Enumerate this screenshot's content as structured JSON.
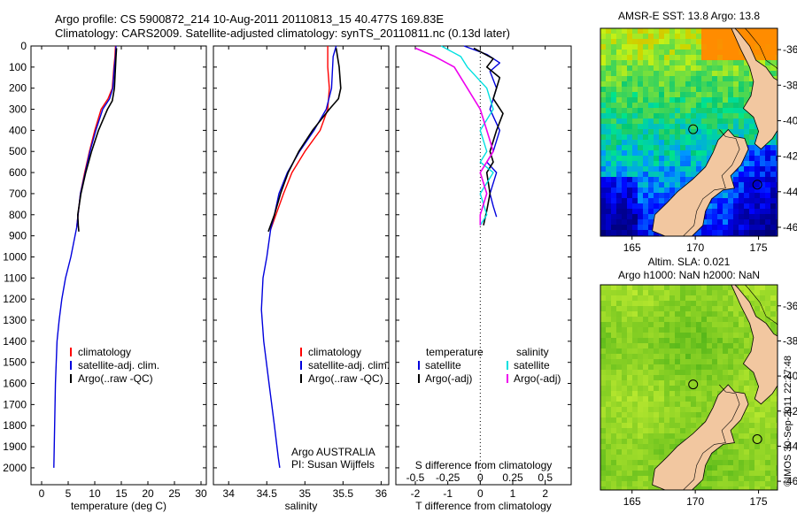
{
  "header": {
    "line1": "Argo profile: CS 5900872_214 10-Aug-2011 20110813_15 40.477S 169.83E",
    "line2": "Climatology: CARS2009. Satellite-adjusted climatology: synTS_20110811.nc (0.13d later)"
  },
  "colors": {
    "climatology": "#ff0000",
    "satellite": "#0000dd",
    "argo": "#000000",
    "salinity_satellite": "#00e0e0",
    "salinity_argo": "#ee00ee",
    "land": "#f2c7a0"
  },
  "chart_data": [
    {
      "type": "line",
      "id": "temperature",
      "xlabel": "temperature (deg C)",
      "ylabel": "",
      "xlim": [
        -2,
        31
      ],
      "ylim": [
        2080,
        0
      ],
      "xticks": [
        "0",
        "5",
        "10",
        "15",
        "20",
        "25",
        "30"
      ],
      "yticks": [
        "0",
        "100",
        "200",
        "300",
        "400",
        "500",
        "600",
        "700",
        "800",
        "900",
        "1000",
        "1100",
        "1200",
        "1300",
        "1400",
        "1500",
        "1600",
        "1700",
        "1800",
        "1900",
        "2000"
      ],
      "legend": [
        "climatology",
        "satellite-adj. clim.",
        "Argo(..raw -QC)"
      ],
      "series": [
        {
          "name": "climatology",
          "color": "#ff0000",
          "x": [
            13.9,
            13.8,
            13.6,
            13.3,
            12.5,
            11.2,
            10.0,
            9.0,
            8.1,
            7.3,
            6.6
          ],
          "y": [
            0,
            50,
            100,
            200,
            250,
            300,
            400,
            500,
            600,
            700,
            860
          ]
        },
        {
          "name": "satellite-adj. clim.",
          "color": "#0000dd",
          "x": [
            14.0,
            13.9,
            13.7,
            13.4,
            12.8,
            11.5,
            10.2,
            9.1,
            8.2,
            7.3,
            6.6,
            5.5,
            4.5,
            3.8,
            3.3,
            2.9,
            2.6,
            2.3
          ],
          "y": [
            0,
            50,
            100,
            200,
            250,
            300,
            400,
            500,
            600,
            700,
            860,
            1000,
            1100,
            1200,
            1300,
            1400,
            1600,
            2000
          ]
        },
        {
          "name": "Argo(..raw -QC)",
          "color": "#000000",
          "x": [
            14.1,
            14.0,
            13.9,
            13.7,
            13.3,
            12.4,
            10.7,
            9.4,
            8.3,
            7.4,
            6.8,
            6.9,
            7.0
          ],
          "y": [
            10,
            50,
            100,
            200,
            260,
            300,
            400,
            500,
            600,
            700,
            800,
            850,
            880
          ]
        }
      ]
    },
    {
      "type": "line",
      "id": "salinity",
      "xlabel": "salinity",
      "ylabel": "",
      "xlim": [
        33.8,
        36.1
      ],
      "ylim": [
        2080,
        0
      ],
      "xticks": [
        "34",
        "34.5",
        "35",
        "35.5",
        "36"
      ],
      "legend": [
        "climatology",
        "satellite-adj. clim.",
        "Argo(..raw -QC)"
      ],
      "annotation": [
        "Argo AUSTRALIA",
        "PI: Susan Wijffels"
      ],
      "series": [
        {
          "name": "climatology",
          "color": "#ff0000",
          "x": [
            35.3,
            35.3,
            35.32,
            35.3,
            35.2,
            35.0,
            34.83,
            34.72,
            34.62,
            34.55
          ],
          "y": [
            0,
            100,
            200,
            300,
            400,
            500,
            600,
            700,
            800,
            870
          ]
        },
        {
          "name": "satellite-adj. clim.",
          "color": "#0000dd",
          "x": [
            35.41,
            35.37,
            35.35,
            35.28,
            35.12,
            34.93,
            34.77,
            34.66,
            34.6,
            34.55,
            34.5,
            34.45,
            34.43,
            34.46,
            34.53,
            34.6,
            34.65,
            34.67
          ],
          "y": [
            0,
            50,
            200,
            300,
            400,
            500,
            600,
            700,
            800,
            870,
            1000,
            1100,
            1250,
            1400,
            1600,
            1800,
            1950,
            2000
          ]
        },
        {
          "name": "Argo(..raw -QC)",
          "color": "#000000",
          "x": [
            35.41,
            35.45,
            35.47,
            35.44,
            35.32,
            35.1,
            34.92,
            34.78,
            34.68,
            34.6,
            34.55,
            34.52
          ],
          "y": [
            10,
            100,
            200,
            250,
            300,
            400,
            500,
            600,
            700,
            800,
            850,
            880
          ]
        }
      ]
    },
    {
      "type": "line",
      "id": "difference",
      "xlabel": "T difference from climatology",
      "xlabel2": "S difference from climatology",
      "xlim": [
        -2.6,
        2.8
      ],
      "ylim": [
        2080,
        0
      ],
      "xticks": [
        "-2",
        "-1",
        "0",
        "1",
        "2"
      ],
      "sticks": [
        "-0.5",
        "-0.25",
        "0",
        "0.25",
        "0.5"
      ],
      "legend_temperature_title": "temperature",
      "legend_salinity_title": "salinity",
      "legend_temperature": [
        "satellite",
        "Argo(-adj)"
      ],
      "legend_salinity": [
        "satellite",
        "Argo(-adj)"
      ],
      "series": [
        {
          "name": "T satellite",
          "color": "#0000dd",
          "x": [
            -0.5,
            0.2,
            0.6,
            0.3,
            0.5,
            0.3,
            0.6,
            0.4,
            0.2,
            0.5,
            0.3,
            0.4,
            0.5
          ],
          "y": [
            0,
            40,
            80,
            120,
            200,
            300,
            400,
            500,
            550,
            600,
            700,
            760,
            810
          ]
        },
        {
          "name": "T Argo(-adj)",
          "color": "#000000",
          "x": [
            -0.2,
            0.4,
            0.2,
            0.6,
            0.4,
            0.7,
            0.5,
            0.3,
            0.4,
            0.2,
            0.3,
            0.2,
            0.1
          ],
          "y": [
            10,
            60,
            100,
            150,
            250,
            320,
            400,
            500,
            550,
            600,
            700,
            780,
            850
          ]
        },
        {
          "name": "S satellite",
          "color": "#00e0e0",
          "x": [
            -0.3,
            -0.15,
            -0.1,
            0.05,
            0.1,
            0.0,
            0.05,
            0.0,
            0.1,
            0.0,
            0.05,
            0.0
          ],
          "y": [
            0,
            50,
            100,
            200,
            300,
            400,
            500,
            550,
            600,
            700,
            800,
            850
          ]
        },
        {
          "name": "S Argo(-adj)",
          "color": "#ee00ee",
          "x": [
            -0.5,
            -0.35,
            -0.2,
            -0.1,
            0.0,
            0.05,
            0.1,
            0.05,
            0.0,
            0.05,
            0.0,
            0.0
          ],
          "y": [
            10,
            50,
            100,
            200,
            300,
            400,
            500,
            550,
            600,
            700,
            800,
            850
          ]
        }
      ]
    },
    {
      "type": "heatmap",
      "id": "sst_map",
      "title": "AMSR-E SST: 13.8 Argo: 13.8",
      "xticks": [
        "165",
        "170",
        "175"
      ],
      "yticks": [
        "-36",
        "-38",
        "-40",
        "-42",
        "-44",
        "-46"
      ],
      "xlim": [
        162.5,
        176.5
      ],
      "ylim": [
        -46.5,
        -34.8
      ]
    },
    {
      "type": "heatmap",
      "id": "sla_map",
      "title": "Altim. SLA: 0.021",
      "subtitle": "Argo h1000: NaN h2000: NaN",
      "xticks": [
        "165",
        "170",
        "175"
      ],
      "yticks": [
        "-36",
        "-38",
        "-40",
        "-42",
        "-44",
        "-46"
      ],
      "xlim": [
        162.5,
        176.5
      ],
      "ylim": [
        -46.5,
        -34.8
      ]
    }
  ],
  "watermark": "©IMOS 30-Sep-2011 22:27:48"
}
